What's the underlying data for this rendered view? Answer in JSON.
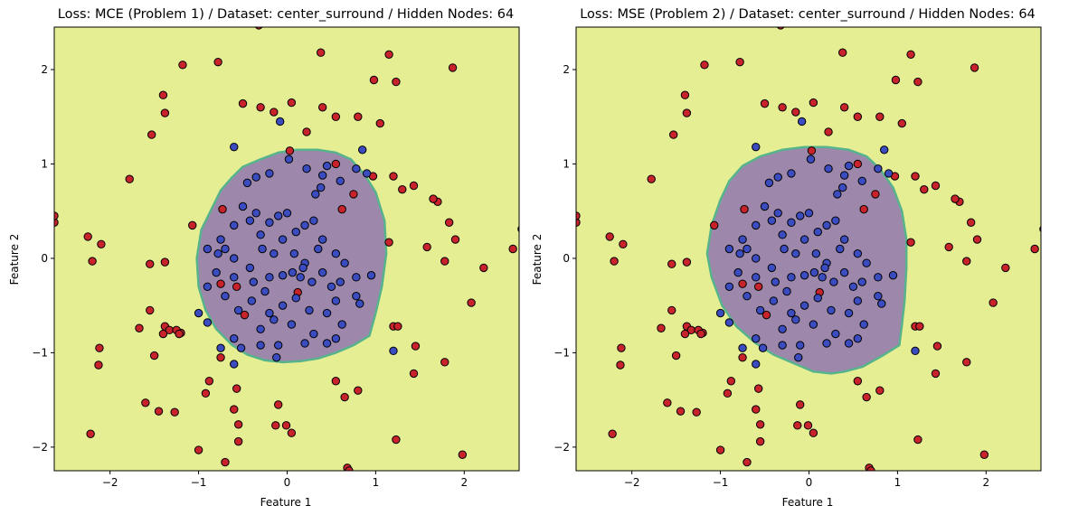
{
  "chart_data": [
    {
      "type": "scatter",
      "title": "Loss: MCE (Problem 1) / Dataset: center_surround / Hidden Nodes: 64",
      "xlabel": "Feature 1",
      "ylabel": "Feature 2",
      "xlim": [
        -2.63,
        2.62
      ],
      "ylim": [
        -2.25,
        2.45
      ],
      "xticks": [
        -2,
        -1,
        0,
        1,
        2
      ],
      "yticks": [
        -2,
        -1,
        0,
        1,
        2
      ],
      "xtick_labels": [
        "−2",
        "−1",
        "0",
        "1",
        "2"
      ],
      "ytick_labels": [
        "−2",
        "−1",
        "0",
        "1",
        "2"
      ],
      "background_class_color": "#e6ee94",
      "region_class_color": "#9d88ac",
      "region_boundary_color": "#56b38c",
      "decision_region": [
        [
          -0.97,
          0.3
        ],
        [
          -0.75,
          0.72
        ],
        [
          -0.62,
          0.86
        ],
        [
          -0.5,
          0.97
        ],
        [
          -0.3,
          1.05
        ],
        [
          -0.1,
          1.12
        ],
        [
          0.1,
          1.15
        ],
        [
          0.35,
          1.15
        ],
        [
          0.55,
          1.12
        ],
        [
          0.72,
          1.05
        ],
        [
          0.88,
          0.88
        ],
        [
          1.0,
          0.7
        ],
        [
          1.1,
          0.4
        ],
        [
          1.12,
          0.05
        ],
        [
          1.07,
          -0.3
        ],
        [
          1.0,
          -0.58
        ],
        [
          0.93,
          -0.82
        ],
        [
          0.75,
          -0.92
        ],
        [
          0.55,
          -1.0
        ],
        [
          0.35,
          -1.06
        ],
        [
          0.15,
          -1.09
        ],
        [
          -0.05,
          -1.1
        ],
        [
          -0.25,
          -1.08
        ],
        [
          -0.45,
          -1.02
        ],
        [
          -0.62,
          -0.92
        ],
        [
          -0.8,
          -0.75
        ],
        [
          -0.92,
          -0.55
        ],
        [
          -1.0,
          -0.3
        ],
        [
          -1.02,
          0.0
        ]
      ]
    },
    {
      "type": "scatter",
      "title": "Loss: MSE (Problem 2) / Dataset: center_surround / Hidden Nodes: 64",
      "xlabel": "Feature 1",
      "ylabel": "Feature 2",
      "xlim": [
        -2.63,
        2.62
      ],
      "ylim": [
        -2.25,
        2.45
      ],
      "xticks": [
        -2,
        -1,
        0,
        1,
        2
      ],
      "yticks": [
        -2,
        -1,
        0,
        1,
        2
      ],
      "xtick_labels": [
        "−2",
        "−1",
        "0",
        "1",
        "2"
      ],
      "ytick_labels": [
        "−2",
        "−1",
        "0",
        "1",
        "2"
      ],
      "background_class_color": "#e6ee94",
      "region_class_color": "#9d88ac",
      "region_boundary_color": "#56b38c",
      "decision_region": [
        [
          -1.1,
          0.35
        ],
        [
          -1.0,
          0.62
        ],
        [
          -0.9,
          0.82
        ],
        [
          -0.75,
          0.98
        ],
        [
          -0.55,
          1.08
        ],
        [
          -0.3,
          1.15
        ],
        [
          -0.05,
          1.18
        ],
        [
          0.2,
          1.18
        ],
        [
          0.45,
          1.15
        ],
        [
          0.65,
          1.08
        ],
        [
          0.8,
          0.95
        ],
        [
          0.95,
          0.75
        ],
        [
          1.05,
          0.5
        ],
        [
          1.1,
          0.2
        ],
        [
          1.1,
          -0.1
        ],
        [
          1.08,
          -0.45
        ],
        [
          1.05,
          -0.7
        ],
        [
          1.02,
          -0.92
        ],
        [
          0.85,
          -1.02
        ],
        [
          0.6,
          -1.15
        ],
        [
          0.4,
          -1.2
        ],
        [
          0.25,
          -1.22
        ],
        [
          0.05,
          -1.2
        ],
        [
          -0.15,
          -1.12
        ],
        [
          -0.4,
          -1.02
        ],
        [
          -0.6,
          -0.9
        ],
        [
          -0.82,
          -0.72
        ],
        [
          -0.98,
          -0.5
        ],
        [
          -1.1,
          -0.2
        ],
        [
          -1.15,
          0.05
        ]
      ]
    }
  ],
  "points": {
    "red_color": "#c8232b",
    "blue_color": "#3b4cc0",
    "red": [
      [
        -0.32,
        2.47
      ],
      [
        0.38,
        2.18
      ],
      [
        1.15,
        2.16
      ],
      [
        -1.18,
        2.05
      ],
      [
        -0.78,
        2.08
      ],
      [
        1.87,
        2.02
      ],
      [
        0.98,
        1.89
      ],
      [
        1.23,
        1.87
      ],
      [
        -0.5,
        1.64
      ],
      [
        -0.3,
        1.6
      ],
      [
        -0.15,
        1.55
      ],
      [
        0.05,
        1.65
      ],
      [
        0.4,
        1.6
      ],
      [
        0.55,
        1.5
      ],
      [
        0.8,
        1.5
      ],
      [
        1.05,
        1.43
      ],
      [
        -1.4,
        1.73
      ],
      [
        -1.38,
        1.54
      ],
      [
        -1.53,
        1.31
      ],
      [
        0.22,
        1.34
      ],
      [
        0.03,
        1.14
      ],
      [
        0.55,
        1.0
      ],
      [
        0.97,
        0.87
      ],
      [
        1.2,
        0.87
      ],
      [
        1.43,
        0.77
      ],
      [
        1.3,
        0.73
      ],
      [
        0.62,
        0.52
      ],
      [
        1.7,
        0.6
      ],
      [
        1.65,
        0.63
      ],
      [
        0.75,
        0.68
      ],
      [
        -1.78,
        0.84
      ],
      [
        -0.73,
        0.52
      ],
      [
        -1.07,
        0.35
      ],
      [
        -2.63,
        0.38
      ],
      [
        -2.63,
        0.45
      ],
      [
        -2.1,
        0.15
      ],
      [
        -2.25,
        0.23
      ],
      [
        -1.55,
        -0.06
      ],
      [
        -1.38,
        -0.04
      ],
      [
        -2.2,
        -0.03
      ],
      [
        1.15,
        0.17
      ],
      [
        1.58,
        0.12
      ],
      [
        2.55,
        0.1
      ],
      [
        2.65,
        0.31
      ],
      [
        1.83,
        0.38
      ],
      [
        1.9,
        0.2
      ],
      [
        1.78,
        -0.03
      ],
      [
        2.22,
        -0.1
      ],
      [
        2.08,
        -0.47
      ],
      [
        -0.75,
        -0.27
      ],
      [
        -0.57,
        -0.3
      ],
      [
        -0.48,
        -0.6
      ],
      [
        0.12,
        -0.36
      ],
      [
        1.2,
        -0.72
      ],
      [
        1.25,
        -0.72
      ],
      [
        1.45,
        -0.93
      ],
      [
        -1.55,
        -0.55
      ],
      [
        -1.67,
        -0.74
      ],
      [
        -1.38,
        -0.72
      ],
      [
        -1.33,
        -0.76
      ],
      [
        -1.2,
        -0.79
      ],
      [
        -1.25,
        -0.76
      ],
      [
        -1.22,
        -0.8
      ],
      [
        -1.4,
        -0.8
      ],
      [
        -2.12,
        -0.95
      ],
      [
        -2.13,
        -1.13
      ],
      [
        -1.5,
        -1.03
      ],
      [
        1.43,
        -1.22
      ],
      [
        1.78,
        -1.1
      ],
      [
        -0.88,
        -1.3
      ],
      [
        -0.75,
        -1.05
      ],
      [
        -0.92,
        -1.43
      ],
      [
        -0.57,
        -1.38
      ],
      [
        -0.6,
        -1.6
      ],
      [
        -0.55,
        -1.76
      ],
      [
        -1.45,
        -1.62
      ],
      [
        -1.27,
        -1.63
      ],
      [
        -0.55,
        -1.94
      ],
      [
        0.55,
        -1.3
      ],
      [
        0.65,
        -1.47
      ],
      [
        0.8,
        -1.4
      ],
      [
        -0.1,
        -1.55
      ],
      [
        -0.13,
        -1.77
      ],
      [
        -0.01,
        -1.77
      ],
      [
        0.05,
        -1.85
      ],
      [
        0.68,
        -2.22
      ],
      [
        0.7,
        -2.25
      ],
      [
        1.23,
        -1.92
      ],
      [
        1.98,
        -2.08
      ],
      [
        -2.22,
        -1.86
      ],
      [
        -1.0,
        -2.03
      ],
      [
        -0.7,
        -2.16
      ],
      [
        -1.33,
        -2.29
      ],
      [
        -0.03,
        -2.3
      ],
      [
        -1.6,
        -1.53
      ]
    ],
    "blue": [
      [
        -0.6,
        1.18
      ],
      [
        -0.35,
        0.86
      ],
      [
        -0.45,
        0.8
      ],
      [
        0.02,
        1.05
      ],
      [
        0.22,
        0.95
      ],
      [
        0.45,
        0.98
      ],
      [
        0.85,
        1.15
      ],
      [
        0.78,
        0.95
      ],
      [
        0.9,
        0.9
      ],
      [
        -0.08,
        1.45
      ],
      [
        0.4,
        0.88
      ],
      [
        0.32,
        0.68
      ],
      [
        0.38,
        0.75
      ],
      [
        0.6,
        0.82
      ],
      [
        -0.2,
        0.9
      ],
      [
        -0.5,
        0.55
      ],
      [
        -0.42,
        0.4
      ],
      [
        -0.3,
        0.25
      ],
      [
        -0.1,
        0.45
      ],
      [
        0.0,
        0.48
      ],
      [
        -0.2,
        0.38
      ],
      [
        -0.05,
        0.2
      ],
      [
        0.2,
        0.35
      ],
      [
        0.3,
        0.4
      ],
      [
        0.1,
        0.28
      ],
      [
        0.4,
        0.2
      ],
      [
        -0.6,
        0.35
      ],
      [
        -0.75,
        0.2
      ],
      [
        -0.7,
        0.1
      ],
      [
        -0.78,
        0.05
      ],
      [
        -0.9,
        0.1
      ],
      [
        -0.6,
        0.0
      ],
      [
        -0.42,
        -0.1
      ],
      [
        -0.28,
        0.1
      ],
      [
        -0.15,
        0.05
      ],
      [
        0.08,
        0.05
      ],
      [
        0.2,
        -0.05
      ],
      [
        0.35,
        0.1
      ],
      [
        0.55,
        0.05
      ],
      [
        0.65,
        -0.05
      ],
      [
        -0.8,
        -0.15
      ],
      [
        -0.6,
        -0.2
      ],
      [
        -0.38,
        -0.25
      ],
      [
        -0.2,
        -0.2
      ],
      [
        -0.05,
        -0.18
      ],
      [
        0.06,
        -0.15
      ],
      [
        0.18,
        -0.1
      ],
      [
        0.28,
        -0.25
      ],
      [
        0.5,
        -0.3
      ],
      [
        0.6,
        -0.25
      ],
      [
        0.78,
        -0.2
      ],
      [
        0.95,
        -0.18
      ],
      [
        -0.9,
        -0.3
      ],
      [
        -0.7,
        -0.4
      ],
      [
        -0.55,
        -0.55
      ],
      [
        -0.4,
        -0.45
      ],
      [
        -0.2,
        -0.58
      ],
      [
        -0.05,
        -0.5
      ],
      [
        0.1,
        -0.42
      ],
      [
        0.25,
        -0.55
      ],
      [
        0.45,
        -0.58
      ],
      [
        0.55,
        -0.45
      ],
      [
        0.78,
        -0.4
      ],
      [
        0.82,
        -0.48
      ],
      [
        -1.0,
        -0.58
      ],
      [
        -0.9,
        -0.68
      ],
      [
        -0.6,
        -0.85
      ],
      [
        -0.52,
        -0.95
      ],
      [
        -0.3,
        -0.75
      ],
      [
        -0.15,
        -0.65
      ],
      [
        0.05,
        -0.7
      ],
      [
        0.3,
        -0.8
      ],
      [
        0.55,
        -0.85
      ],
      [
        0.62,
        -0.7
      ],
      [
        -0.12,
        -1.05
      ],
      [
        -0.75,
        -0.95
      ],
      [
        -0.3,
        -0.92
      ],
      [
        -0.1,
        -0.92
      ],
      [
        0.2,
        -0.9
      ],
      [
        0.45,
        -0.9
      ],
      [
        -0.35,
        0.48
      ],
      [
        0.15,
        -0.2
      ],
      [
        -0.25,
        -0.35
      ],
      [
        0.4,
        -0.15
      ],
      [
        1.2,
        -0.98
      ],
      [
        -0.6,
        -1.12
      ]
    ]
  }
}
